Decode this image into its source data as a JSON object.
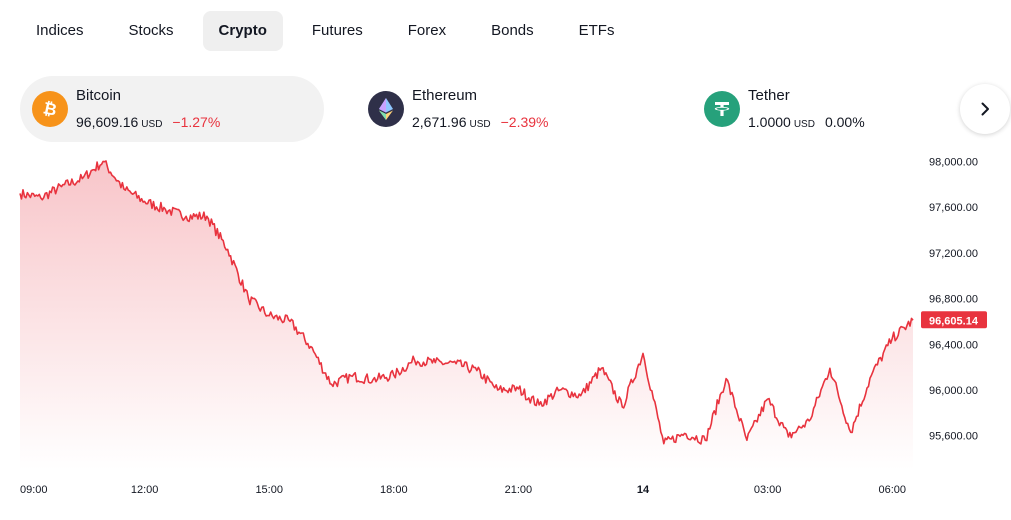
{
  "tabs": [
    "Indices",
    "Stocks",
    "Crypto",
    "Futures",
    "Forex",
    "Bonds",
    "ETFs"
  ],
  "active_tab": "Crypto",
  "cards": [
    {
      "name": "Bitcoin",
      "price": "96,609.16",
      "currency": "USD",
      "change": "−1.27%",
      "icon": "bitcoin-icon",
      "icon_color": "#f7931a",
      "change_color": "#e8333e"
    },
    {
      "name": "Ethereum",
      "price": "2,671.96",
      "currency": "USD",
      "change": "−2.39%",
      "icon": "ethereum-icon",
      "icon_color": "#2f3049",
      "change_color": "#e8333e"
    },
    {
      "name": "Tether",
      "price": "1.0000",
      "currency": "USD",
      "change": "0.00%",
      "icon": "tether-icon",
      "icon_color": "#26a17b",
      "change_color": "#131722"
    }
  ],
  "next_button_icon": "chevron-right-icon",
  "colors": {
    "line": "#e8333e",
    "fill_top": "#f8c5c9",
    "fill_bottom": "#ffffff",
    "accent": "#e8333e"
  },
  "chart_data": {
    "type": "area",
    "series": [
      {
        "x": [
          "09:00",
          "09:30",
          "10:00",
          "10:30",
          "11:00",
          "11:30",
          "12:00",
          "12:30",
          "13:00",
          "13:30",
          "14:00",
          "14:30",
          "15:00",
          "15:30",
          "16:00",
          "16:30",
          "17:00",
          "17:30",
          "18:00",
          "18:30",
          "19:00",
          "19:30",
          "20:00",
          "20:30",
          "21:00",
          "21:30",
          "22:00",
          "22:30",
          "23:00",
          "23:30",
          "00:00",
          "00:30",
          "01:00",
          "01:30",
          "02:00",
          "02:30",
          "03:00",
          "03:30",
          "04:00",
          "04:30",
          "05:00",
          "05:30",
          "06:00",
          "06:30"
        ],
        "y": [
          97720,
          97680,
          97780,
          97850,
          98000,
          97760,
          97650,
          97580,
          97520,
          97520,
          97230,
          96800,
          96650,
          96600,
          96380,
          96050,
          96120,
          96090,
          96130,
          96260,
          96240,
          96230,
          96170,
          96000,
          96010,
          95870,
          96000,
          95950,
          96190,
          95850,
          96320,
          95530,
          95620,
          95560,
          96100,
          95560,
          95920,
          95590,
          95730,
          96190,
          95630,
          96130,
          96450,
          96610
        ]
      }
    ],
    "x_tick_labels": [
      "09:00",
      "12:00",
      "15:00",
      "18:00",
      "21:00",
      "14",
      "03:00",
      "06:00"
    ],
    "y_tick_labels": [
      "98,000.00",
      "97,600.00",
      "97,200.00",
      "96,800.00",
      "96,400.00",
      "96,000.00",
      "95,600.00"
    ],
    "y_ticks": [
      98000,
      97600,
      97200,
      96800,
      96400,
      96000,
      95600
    ],
    "ylim": [
      95300,
      98100
    ],
    "last_price_label": "96,605.14",
    "grid": false
  }
}
